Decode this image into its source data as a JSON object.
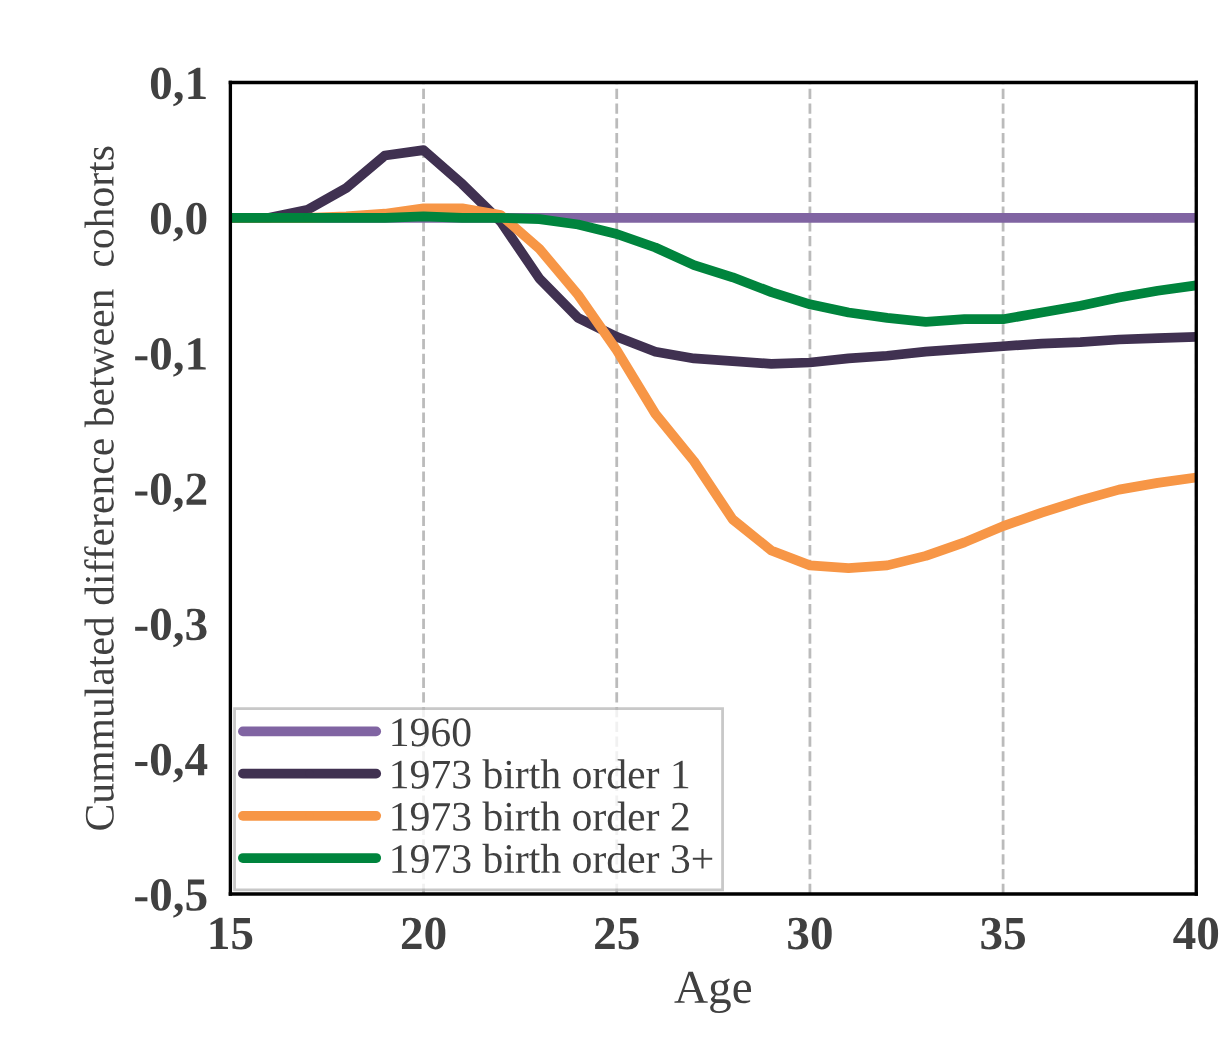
{
  "chart_data": {
    "type": "line",
    "xlabel": "Age",
    "ylabel": "Cummulated difference between  cohorts",
    "x": [
      15,
      16,
      17,
      18,
      19,
      20,
      21,
      22,
      23,
      24,
      25,
      26,
      27,
      28,
      29,
      30,
      31,
      32,
      33,
      34,
      35,
      36,
      37,
      38,
      39,
      40
    ],
    "series": [
      {
        "name": "1960",
        "color": "#8064a2",
        "values": [
          0,
          0,
          0,
          0,
          0,
          0,
          0,
          0,
          0,
          0,
          0,
          0,
          0,
          0,
          0,
          0,
          0,
          0,
          0,
          0,
          0,
          0,
          0,
          0,
          0,
          0
        ]
      },
      {
        "name": "1973 birth order 1",
        "color": "#403151",
        "values": [
          0,
          0,
          0.006,
          0.022,
          0.046,
          0.05,
          0.025,
          -0.003,
          -0.045,
          -0.074,
          -0.088,
          -0.099,
          -0.104,
          -0.106,
          -0.108,
          -0.107,
          -0.104,
          -0.102,
          -0.099,
          -0.097,
          -0.095,
          -0.093,
          -0.092,
          -0.09,
          -0.089,
          -0.088
        ]
      },
      {
        "name": "1973 birth order 2",
        "color": "#f79646",
        "values": [
          0,
          0,
          0,
          0.001,
          0.003,
          0.007,
          0.007,
          0.002,
          -0.023,
          -0.057,
          -0.098,
          -0.145,
          -0.18,
          -0.223,
          -0.246,
          -0.257,
          -0.259,
          -0.257,
          -0.25,
          -0.24,
          -0.228,
          -0.218,
          -0.209,
          -0.201,
          -0.196,
          -0.192
        ]
      },
      {
        "name": "1973 birth order 3+",
        "color": "#00843d",
        "values": [
          0,
          0,
          0,
          0,
          0,
          0.001,
          0,
          0,
          -0.001,
          -0.005,
          -0.012,
          -0.022,
          -0.035,
          -0.044,
          -0.055,
          -0.064,
          -0.07,
          -0.074,
          -0.077,
          -0.075,
          -0.075,
          -0.07,
          -0.065,
          -0.059,
          -0.054,
          -0.05
        ]
      }
    ],
    "xlim": [
      15,
      40
    ],
    "xticks": [
      15,
      20,
      25,
      30,
      35,
      40
    ],
    "ylim": [
      -0.5,
      0.1
    ],
    "yticks": [
      {
        "value": -0.5,
        "label": "-0,5"
      },
      {
        "value": -0.4,
        "label": "-0,4"
      },
      {
        "value": -0.3,
        "label": "-0,3"
      },
      {
        "value": -0.2,
        "label": "-0,2"
      },
      {
        "value": -0.1,
        "label": "-0,1"
      },
      {
        "value": 0,
        "label": "0,0"
      },
      {
        "value": 0.1,
        "label": "0,1"
      }
    ],
    "grid": "x",
    "legend": "bottom left",
    "marker": "circle",
    "line_style": "solid"
  }
}
